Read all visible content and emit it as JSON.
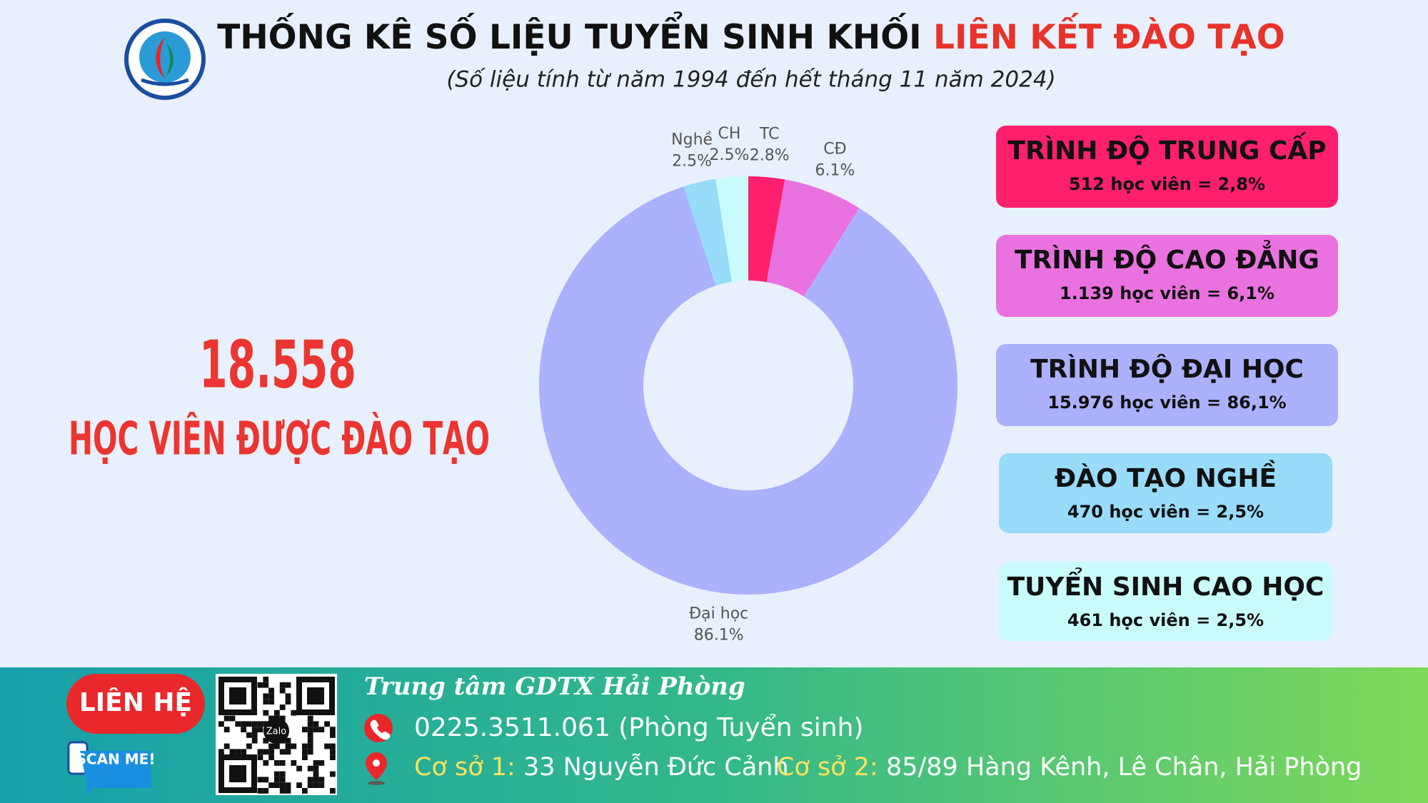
{
  "header": {
    "title_main": "THỐNG KÊ SỐ LIỆU TUYỂN SINH KHỐI",
    "title_highlight": "LIÊN KẾT ĐÀO TẠO",
    "subtitle": "(Số liệu tính từ năm 1994 đến hết tháng 11 năm 2024)"
  },
  "total": {
    "number": "18.558",
    "label": "HỌC VIÊN ĐƯỢC ĐÀO TẠO"
  },
  "chart_data": {
    "type": "pie",
    "donut": true,
    "categories": [
      "TC",
      "CĐ",
      "Đại học",
      "Nghề",
      "CH"
    ],
    "values": [
      2.8,
      6.1,
      86.1,
      2.5,
      2.5
    ],
    "value_labels": [
      "2.8%",
      "6.1%",
      "86.1%",
      "2.5%",
      "2.5%"
    ],
    "colors": [
      "#ff1f6d",
      "#ea72e0",
      "#abb1fd",
      "#98dcfa",
      "#c9fbfb"
    ]
  },
  "cards": [
    {
      "title": "TRÌNH ĐỘ TRUNG CẤP",
      "detail": "512 học viên = 2,8%"
    },
    {
      "title": "TRÌNH ĐỘ CAO ĐẲNG",
      "detail": "1.139 học viên = 6,1%"
    },
    {
      "title": "TRÌNH ĐỘ ĐẠI HỌC",
      "detail": "15.976 học viên = 86,1%"
    },
    {
      "title": "ĐÀO TẠO NGHỀ",
      "detail": "470 học viên = 2,5%"
    },
    {
      "title": "TUYỂN SINH CAO HỌC",
      "detail": "461 học viên = 2,5%"
    }
  ],
  "footer": {
    "contact_button": "LIÊN HỆ",
    "scan_label": "SCAN ME!",
    "qr_label": "Zalo",
    "org_name": "Trung tâm GDTX Hải Phòng",
    "phone": "0225.3511.061 (Phòng Tuyển sinh)",
    "campus1_label": "Cơ sở 1:",
    "campus1_address": "33 Nguyễn Đức Cảnh",
    "campus2_label": "Cơ sở 2:",
    "campus2_address": "85/89 Hàng Kênh, Lê Chân, Hải Phòng"
  }
}
